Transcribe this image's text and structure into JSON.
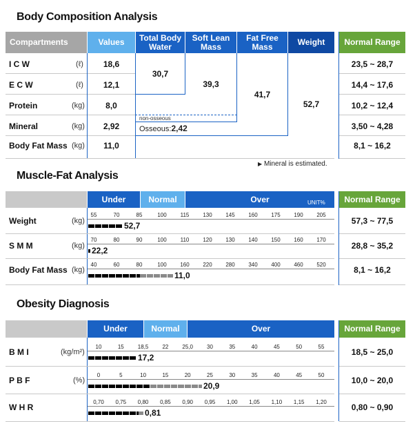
{
  "bca": {
    "title": "Body Composition Analysis",
    "headers": {
      "compartments": "Compartments",
      "values": "Values",
      "tbw": "Total Body Water",
      "slm": "Soft Lean Mass",
      "ffm": "Fat Free Mass",
      "weight": "Weight",
      "normal": "Normal Range"
    },
    "rows": [
      {
        "name": "I C W",
        "unit": "(ℓ)",
        "value": "18,6",
        "range": "23,5 ~ 28,7"
      },
      {
        "name": "E C W",
        "unit": "(ℓ)",
        "value": "12,1",
        "range": "14,4 ~ 17,6"
      },
      {
        "name": "Protein",
        "unit": "(kg)",
        "value": "8,0",
        "range": "10,2 ~ 12,4"
      },
      {
        "name": "Mineral",
        "unit": "(kg)",
        "value": "2,92",
        "range": "3,50 ~ 4,28"
      },
      {
        "name": "Body Fat Mass",
        "unit": "(kg)",
        "value": "11,0",
        "range": "8,1 ~ 16,2"
      }
    ],
    "tbw_value": "30,7",
    "slm_value": "39,3",
    "ffm_value": "41,7",
    "weight_value": "52,7",
    "non_osseous": "non-osseous",
    "osseous_label": "Osseous:",
    "osseous_value": "2,42",
    "note": "Mineral is estimated."
  },
  "mfa": {
    "title": "Muscle-Fat Analysis",
    "headers": {
      "under": "Under",
      "normal": "Normal",
      "over": "Over",
      "unit": "UNIT%",
      "normal_range": "Normal Range"
    },
    "rows": [
      {
        "name": "Weight",
        "unit": "(kg)",
        "ticks": [
          "55",
          "70",
          "85",
          "100",
          "115",
          "130",
          "145",
          "160",
          "175",
          "190",
          "205"
        ],
        "value": "52,7",
        "fill": 0.14,
        "gray": 0,
        "range": "57,3 ~ 77,5"
      },
      {
        "name": "S M M",
        "unit": "(kg)",
        "ticks": [
          "70",
          "80",
          "90",
          "100",
          "110",
          "120",
          "130",
          "140",
          "150",
          "160",
          "170"
        ],
        "value": "22,2",
        "fill": 0.005,
        "gray": 0,
        "range": "28,8 ~ 35,2"
      },
      {
        "name": "Body Fat Mass",
        "unit": "(kg)",
        "ticks": [
          "40",
          "60",
          "80",
          "100",
          "160",
          "220",
          "280",
          "340",
          "400",
          "460",
          "520"
        ],
        "value": "11,0",
        "fill": 0.21,
        "gray": 0.135,
        "range": "8,1 ~ 16,2"
      }
    ]
  },
  "od": {
    "title": "Obesity Diagnosis",
    "headers": {
      "under": "Under",
      "normal": "Normal",
      "over": "Over",
      "normal_range": "Normal Range"
    },
    "rows": [
      {
        "name": "B M I",
        "unit": "(kg/m²)",
        "ticks": [
          "10",
          "15",
          "18,5",
          "22",
          "25,0",
          "30",
          "35",
          "40",
          "45",
          "50",
          "55"
        ],
        "value": "17,2",
        "fill": 0.195,
        "gray": 0,
        "range": "18,5 ~ 25,0"
      },
      {
        "name": "P B F",
        "unit": "(%)",
        "ticks": [
          "0",
          "5",
          "10",
          "15",
          "20",
          "25",
          "30",
          "35",
          "40",
          "45",
          "50"
        ],
        "value": "20,9",
        "fill": 0.25,
        "gray": 0.21,
        "range": "10,0 ~ 20,0"
      },
      {
        "name": "W H R",
        "unit": "",
        "ticks": [
          "0,70",
          "0,75",
          "0,80",
          "0,85",
          "0,90",
          "0,95",
          "1,00",
          "1,05",
          "1,10",
          "1,15",
          "1,20"
        ],
        "value": "0,81",
        "fill": 0.205,
        "gray": 0.02,
        "range": "0,80 ~ 0,90"
      }
    ]
  }
}
